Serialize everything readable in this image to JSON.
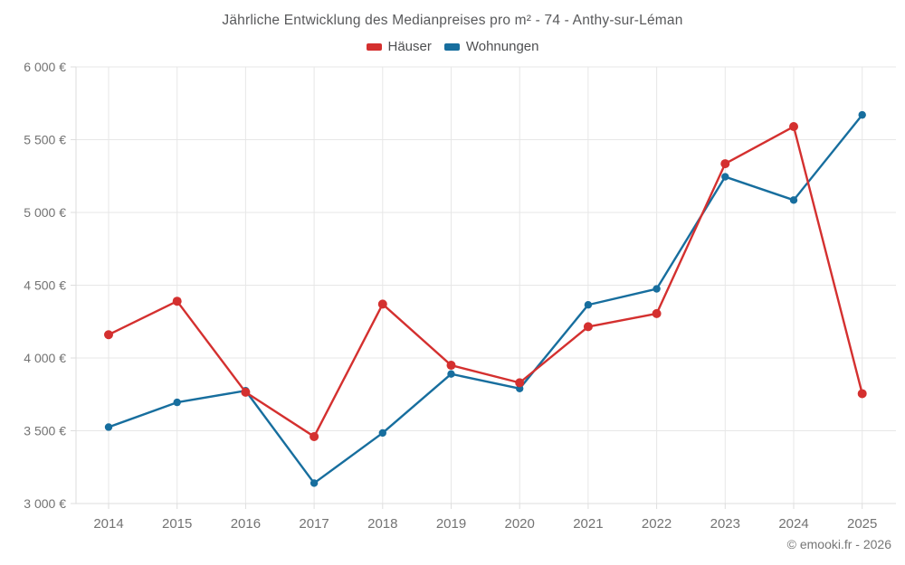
{
  "title": "Jährliche Entwicklung des Medianpreises pro m² - 74 - Anthy-sur-Léman",
  "footer": "© emooki.fr - 2026",
  "colors": {
    "hauser": "#d4302f",
    "wohnungen": "#176e9e",
    "grid": "#e7e7e7",
    "axis": "#dedede",
    "tick_text": "#737373",
    "title_text": "#58595b"
  },
  "chart_data": {
    "type": "line",
    "title": "Jährliche Entwicklung des Medianpreises pro m² - 74 - Anthy-sur-Léman",
    "x": [
      "2014",
      "2015",
      "2016",
      "2017",
      "2018",
      "2019",
      "2020",
      "2021",
      "2022",
      "2023",
      "2024",
      "2025"
    ],
    "series": [
      {
        "name": "Häuser",
        "color": "#d4302f",
        "point_radius": 5,
        "values": [
          4160,
          4390,
          3765,
          3460,
          4370,
          3950,
          3830,
          4215,
          4305,
          5335,
          5590,
          3755
        ]
      },
      {
        "name": "Wohnungen",
        "color": "#176e9e",
        "point_radius": 4.2,
        "values": [
          3525,
          3695,
          3775,
          3140,
          3485,
          3890,
          3790,
          4365,
          4475,
          5245,
          5085,
          5670
        ]
      }
    ],
    "ylim": [
      3000,
      6000
    ],
    "ytick_step": 500,
    "ytick_labels": [
      "6 000 €",
      "5 500 €",
      "5 000 €",
      "4 500 €",
      "4 000 €",
      "3 500 €",
      "3 000 €"
    ],
    "xlabel": "",
    "ylabel": "",
    "grid": true,
    "legend_position": "top",
    "legend": [
      "Häuser",
      "Wohnungen"
    ]
  }
}
